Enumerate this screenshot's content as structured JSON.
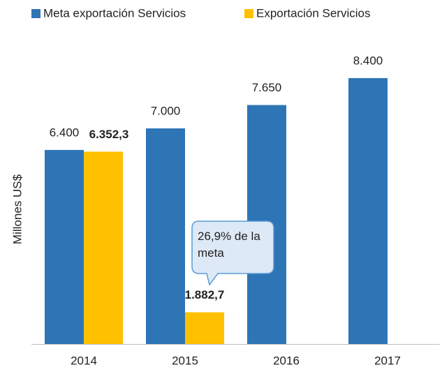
{
  "chart_data": {
    "type": "bar",
    "y_label": "Millones US$",
    "categories": [
      "2014",
      "2015",
      "2016",
      "2017"
    ],
    "series": [
      {
        "name": "Meta exportación Servicios",
        "color": "#2e75b6",
        "values": [
          6400,
          7000,
          7650,
          8400
        ],
        "value_labels": [
          "6.400",
          "7.000",
          "7.650",
          "8.400"
        ]
      },
      {
        "name": "Exportación Servicios",
        "color": "#ffc000",
        "values": [
          6352.3,
          1882.7,
          null,
          null
        ],
        "value_labels": [
          "6.352,3",
          "1.882,7",
          null,
          null
        ]
      }
    ],
    "annotation": "26,9% de la meta",
    "ylim": [
      1000,
      9000
    ]
  }
}
